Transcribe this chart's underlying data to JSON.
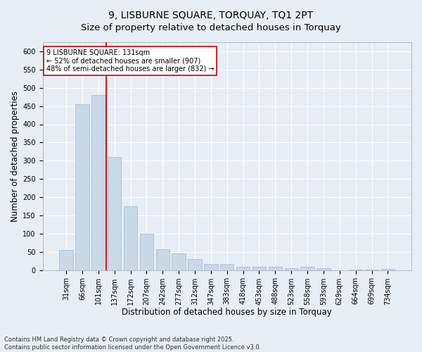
{
  "title": "9, LISBURNE SQUARE, TORQUAY, TQ1 2PT",
  "subtitle": "Size of property relative to detached houses in Torquay",
  "xlabel": "Distribution of detached houses by size in Torquay",
  "ylabel": "Number of detached properties",
  "categories": [
    "31sqm",
    "66sqm",
    "101sqm",
    "137sqm",
    "172sqm",
    "207sqm",
    "242sqm",
    "277sqm",
    "312sqm",
    "347sqm",
    "383sqm",
    "418sqm",
    "453sqm",
    "488sqm",
    "523sqm",
    "558sqm",
    "593sqm",
    "629sqm",
    "664sqm",
    "699sqm",
    "734sqm"
  ],
  "values": [
    55,
    455,
    480,
    310,
    175,
    100,
    58,
    45,
    30,
    16,
    16,
    8,
    8,
    9,
    6,
    8,
    5,
    0,
    2,
    1,
    3
  ],
  "bar_color": "#c9d9e8",
  "bar_edge_color": "#a8c0d4",
  "background_color": "#e8eef5",
  "vline_x": 2.5,
  "vline_color": "#cc0000",
  "annotation_text": "9 LISBURNE SQUARE: 131sqm\n← 52% of detached houses are smaller (907)\n48% of semi-detached houses are larger (832) →",
  "annotation_box_color": "#ffffff",
  "annotation_box_edge": "#cc0000",
  "ylim": [
    0,
    625
  ],
  "yticks": [
    0,
    50,
    100,
    150,
    200,
    250,
    300,
    350,
    400,
    450,
    500,
    550,
    600
  ],
  "footer_text": "Contains HM Land Registry data © Crown copyright and database right 2025.\nContains public sector information licensed under the Open Government Licence v3.0.",
  "title_fontsize": 10,
  "subtitle_fontsize": 9.5,
  "axis_label_fontsize": 8.5,
  "tick_fontsize": 7,
  "annotation_fontsize": 7,
  "footer_fontsize": 6
}
